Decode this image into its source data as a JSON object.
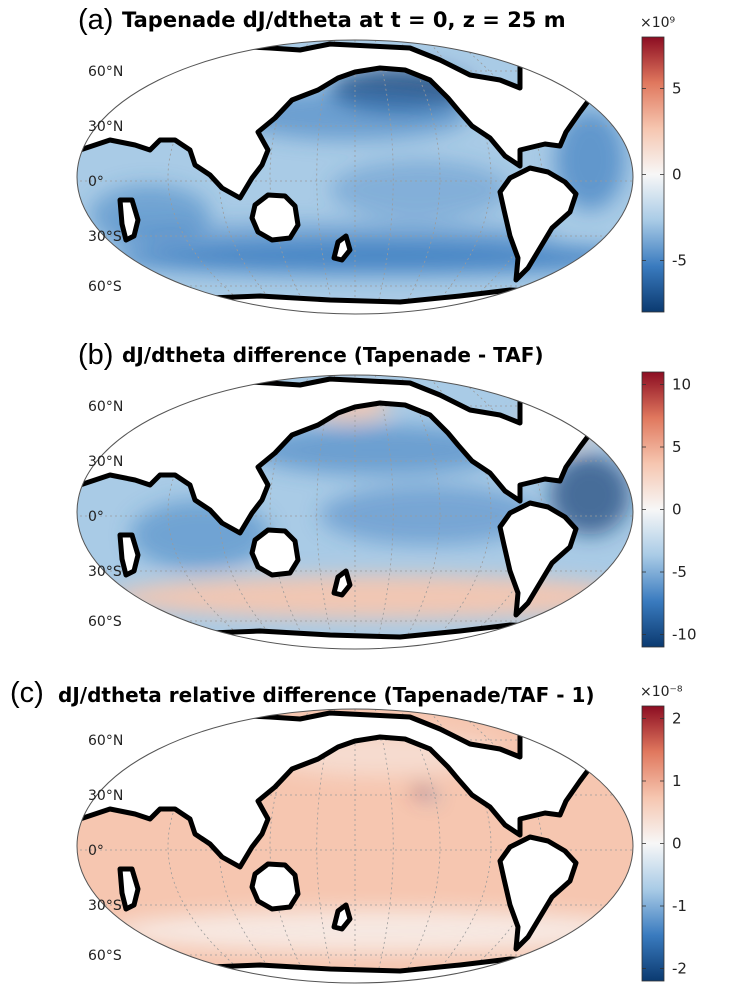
{
  "colors": {
    "neg_strong": "#0b3a70",
    "neg_mid": "#3a7bbf",
    "neg_light": "#a9cbe6",
    "zero": "#f7f7f7",
    "pos_light": "#f6c6b0",
    "pos_mid": "#e0785e",
    "pos_strong": "#8c0d22",
    "land": "#ffffff",
    "coast": "#000000"
  },
  "chart_data": [
    {
      "type": "heatmap",
      "panel_label": "(a)",
      "title": "Tapenade dJ/dtheta at t = 0, z = 25 m",
      "lat_labels": [
        "60°N",
        "30°N",
        "0°",
        "30°S",
        "60°S"
      ],
      "colorbar": {
        "range": [
          -8,
          8
        ],
        "ticks": [
          5,
          0,
          -5
        ],
        "tick_labels": [
          "5",
          "0",
          "-5"
        ],
        "exponent_label": "×10⁹"
      },
      "field_summary": "mostly negative values; strongest negative in North Pacific, Southern Ocean band and Atlantic"
    },
    {
      "type": "heatmap",
      "panel_label": "(b)",
      "title": "dJ/dtheta difference (Tapenade - TAF)",
      "lat_labels": [
        "60°N",
        "30°N",
        "0°",
        "30°S",
        "60°S"
      ],
      "colorbar": {
        "range": [
          -11,
          11
        ],
        "ticks": [
          10,
          5,
          0,
          -5,
          -10
        ],
        "tick_labels": [
          "10",
          "5",
          "0",
          "-5",
          "-10"
        ],
        "exponent_label": ""
      },
      "field_summary": "negative over most oceans, positive in Southern Ocean and near Bering Sea"
    },
    {
      "type": "heatmap",
      "panel_label": "(c)",
      "title": "dJ/dtheta relative difference (Tapenade/TAF - 1)",
      "lat_labels": [
        "60°N",
        "30°N",
        "0°",
        "30°S",
        "60°S"
      ],
      "colorbar": {
        "range": [
          -2.2,
          2.2
        ],
        "ticks": [
          2,
          1,
          0,
          -1,
          -2
        ],
        "tick_labels": [
          "2",
          "1",
          "0",
          "-1",
          "-2"
        ],
        "exponent_label": "×10⁻⁸"
      },
      "field_summary": "weakly positive almost everywhere, slightly negative at high latitudes"
    }
  ]
}
